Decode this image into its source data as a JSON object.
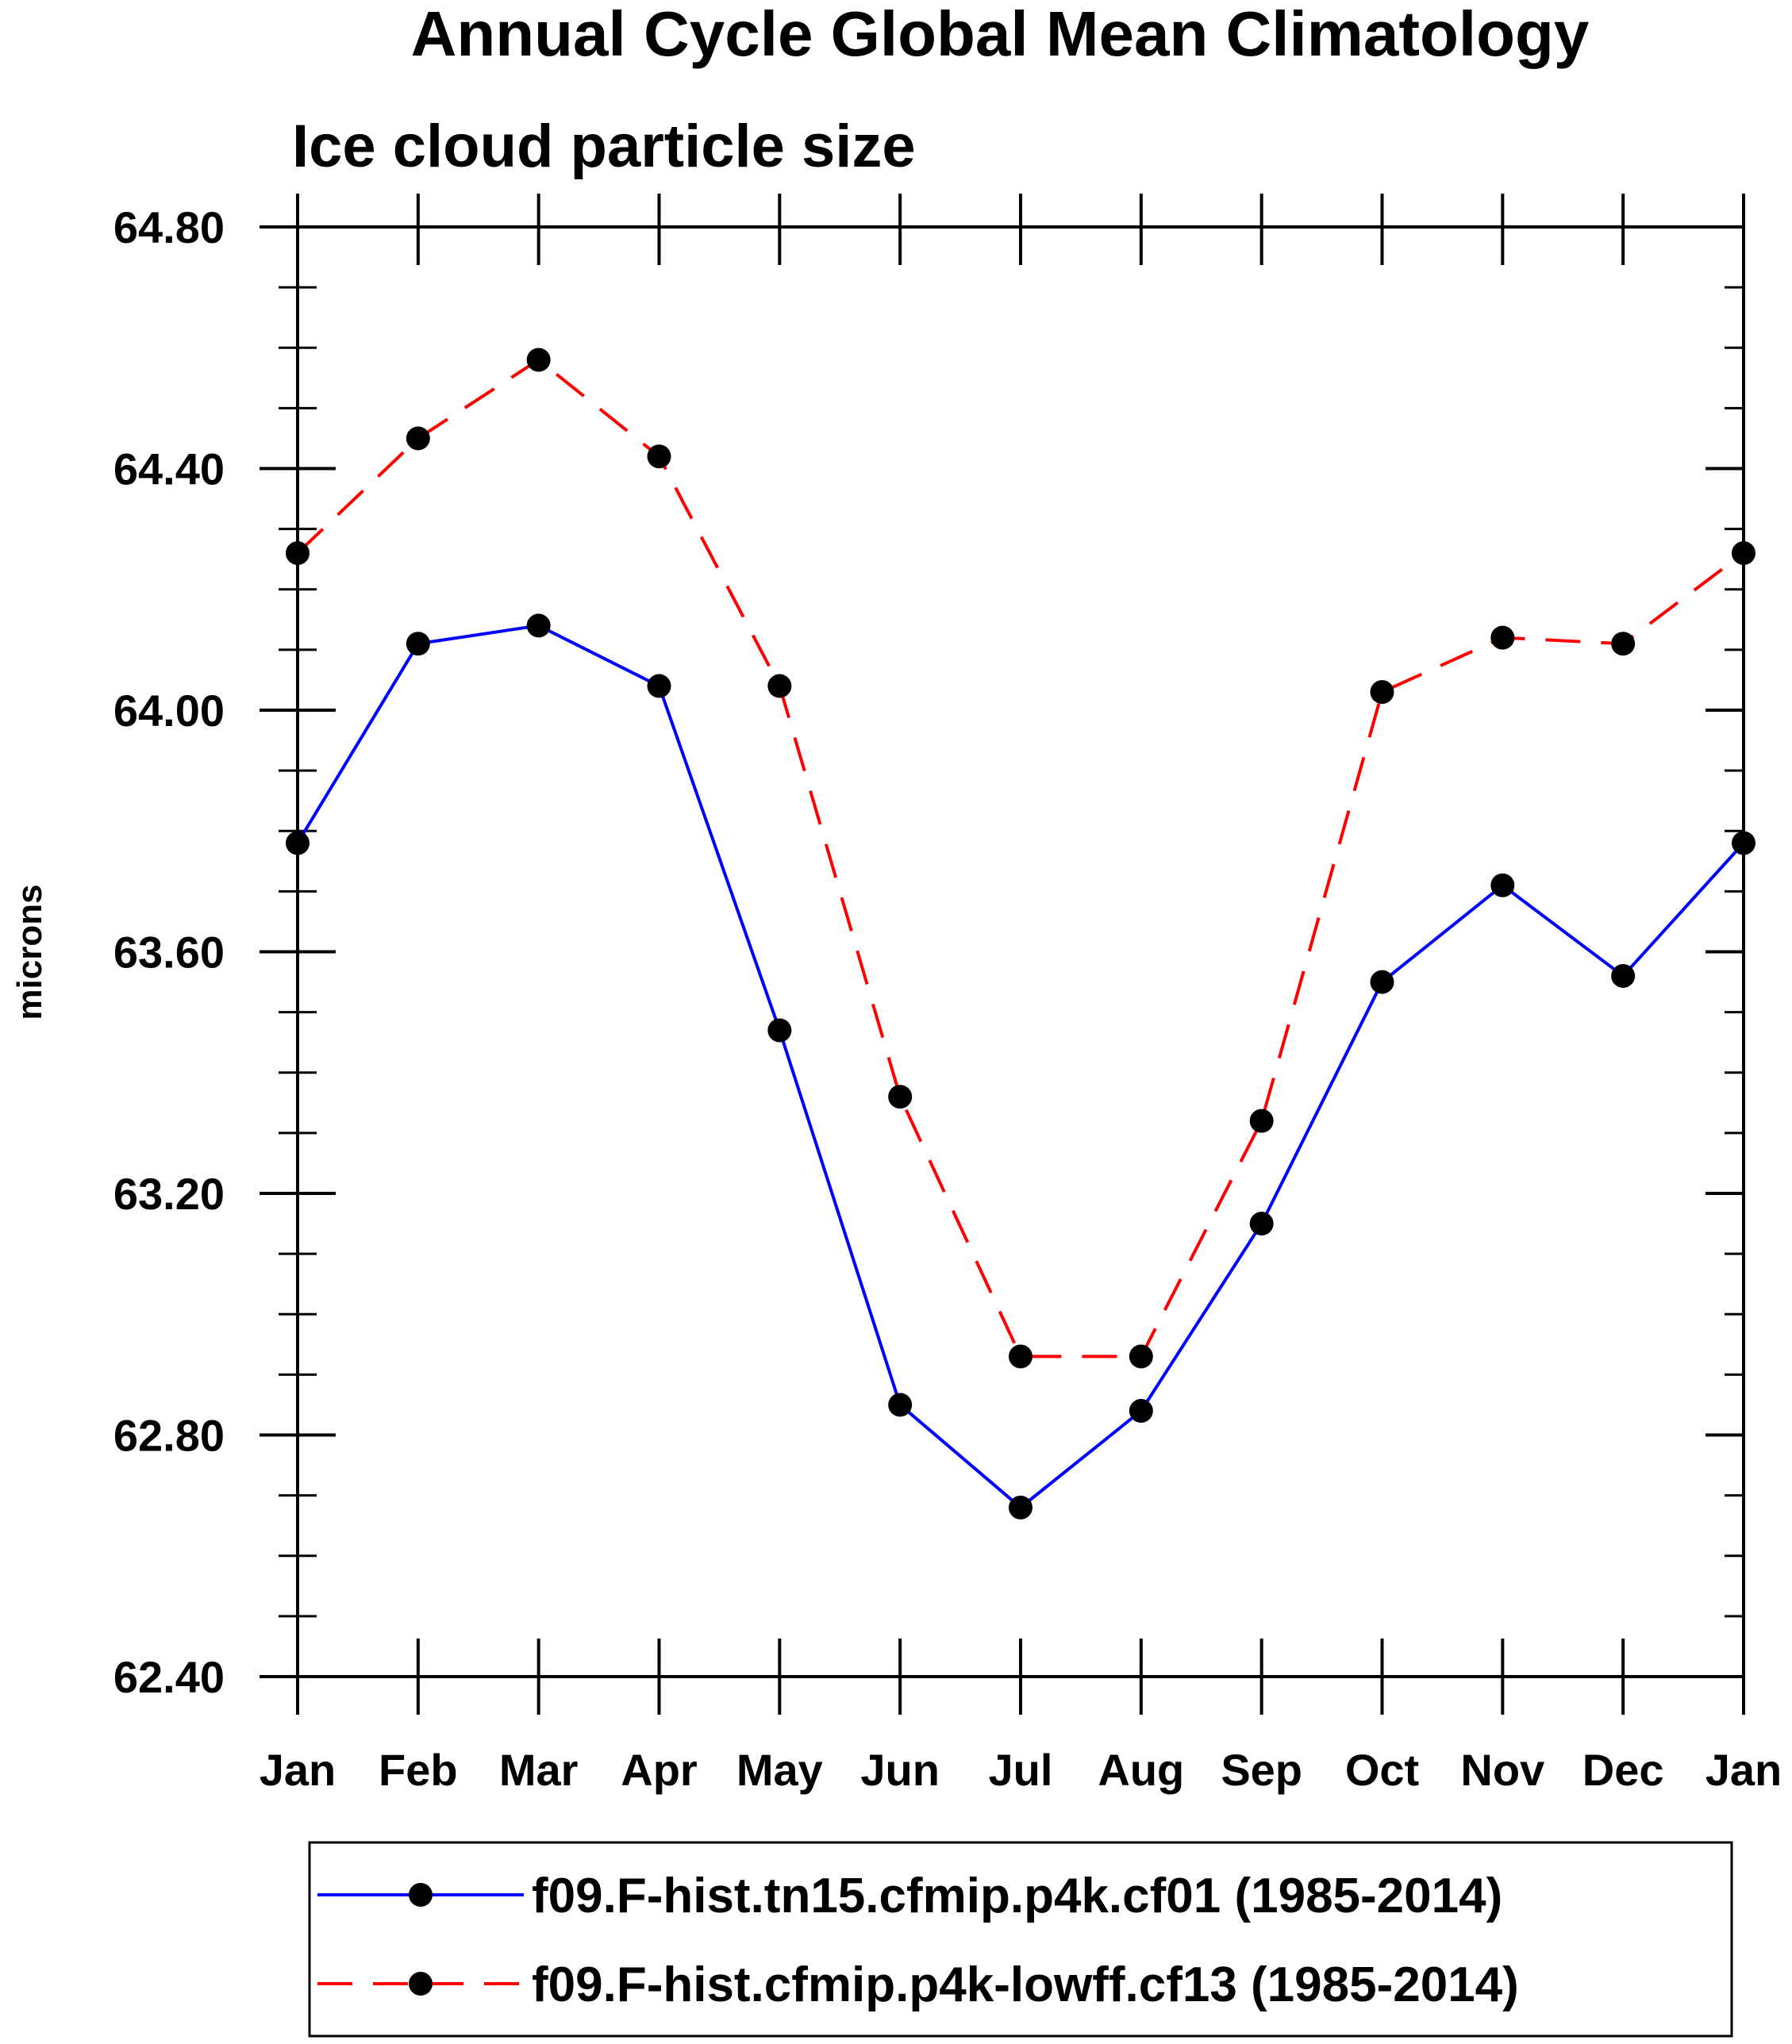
{
  "chart_data": {
    "type": "line",
    "title": "Annual Cycle Global Mean Climatology",
    "subtitle": "Ice cloud particle size",
    "xlabel": "",
    "ylabel": "microns",
    "categories": [
      "Jan",
      "Feb",
      "Mar",
      "Apr",
      "May",
      "Jun",
      "Jul",
      "Aug",
      "Sep",
      "Oct",
      "Nov",
      "Dec",
      "Jan"
    ],
    "ylim": [
      62.4,
      64.8
    ],
    "yticks": [
      "62.40",
      "62.80",
      "63.20",
      "63.60",
      "64.00",
      "64.40",
      "64.80"
    ],
    "ytick_values": [
      62.4,
      62.8,
      63.2,
      63.6,
      64.0,
      64.4,
      64.8
    ],
    "yminor_step": 0.1,
    "legend_position": "bottom",
    "series": [
      {
        "name": "f09.F-hist.tn15.cfmip.p4k.cf01 (1985-2014)",
        "color": "#0000ff",
        "dash": "solid",
        "values": [
          63.78,
          64.11,
          64.14,
          64.04,
          63.47,
          62.85,
          62.68,
          62.84,
          63.15,
          63.55,
          63.71,
          63.56,
          63.78
        ]
      },
      {
        "name": "f09.F-hist.cfmip.p4k-lowff.cf13 (1985-2014)",
        "color": "#ff0000",
        "dash": "dashed",
        "values": [
          64.26,
          64.45,
          64.58,
          64.42,
          64.04,
          63.36,
          62.93,
          62.93,
          63.32,
          64.03,
          64.12,
          64.11,
          64.26
        ]
      }
    ]
  }
}
